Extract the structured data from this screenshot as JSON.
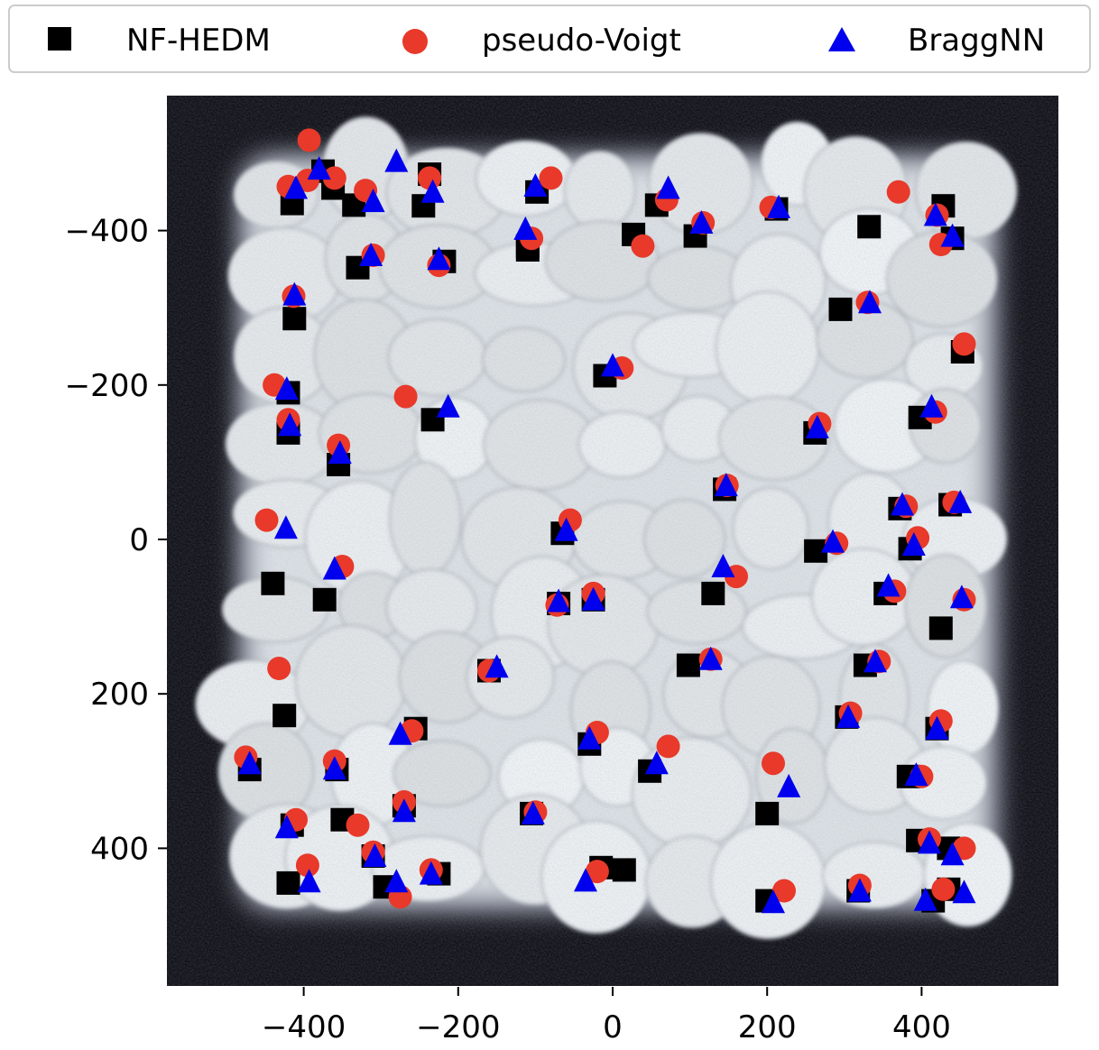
{
  "chart_data": {
    "type": "scatter",
    "background": "grayscale grain-map image (NF-HEDM reconstruction)",
    "x_ticks": [
      -400,
      -200,
      0,
      200,
      400
    ],
    "y_ticks": [
      -400,
      -200,
      0,
      200,
      400
    ],
    "x_tick_labels": [
      "−400",
      "−200",
      "0",
      "200",
      "400"
    ],
    "y_tick_labels": [
      "−400",
      "−200",
      "0",
      "200",
      "400"
    ],
    "xlim": [
      -578,
      578
    ],
    "ylim": [
      578,
      -578
    ],
    "y_inverted": true,
    "grid": false,
    "legend_position": "top, above plot, horizontal",
    "series": [
      {
        "name": "NF-HEDM",
        "marker": "square",
        "color": "#000000",
        "points": [
          [
            -375,
            -477
          ],
          [
            -362,
            -455
          ],
          [
            -335,
            -433
          ],
          [
            -415,
            -435
          ],
          [
            -237,
            -473
          ],
          [
            -245,
            -432
          ],
          [
            -330,
            -352
          ],
          [
            -218,
            -360
          ],
          [
            -110,
            -375
          ],
          [
            -98,
            -450
          ],
          [
            -110,
            -380
          ],
          [
            27,
            -395
          ],
          [
            57,
            -433
          ],
          [
            107,
            -393
          ],
          [
            212,
            -428
          ],
          [
            332,
            -405
          ],
          [
            428,
            -432
          ],
          [
            440,
            -390
          ],
          [
            295,
            -298
          ],
          [
            453,
            -243
          ],
          [
            -412,
            -286
          ],
          [
            -420,
            -190
          ],
          [
            -420,
            -138
          ],
          [
            -355,
            -97
          ],
          [
            -233,
            -155
          ],
          [
            -10,
            -212
          ],
          [
            262,
            -138
          ],
          [
            398,
            -158
          ],
          [
            145,
            -65
          ],
          [
            372,
            -40
          ],
          [
            437,
            -45
          ],
          [
            -65,
            -8
          ],
          [
            263,
            15
          ],
          [
            385,
            12
          ],
          [
            -440,
            57
          ],
          [
            -373,
            78
          ],
          [
            -70,
            83
          ],
          [
            -25,
            78
          ],
          [
            130,
            70
          ],
          [
            353,
            70
          ],
          [
            425,
            115
          ],
          [
            98,
            163
          ],
          [
            -160,
            170
          ],
          [
            327,
            163
          ],
          [
            -425,
            228
          ],
          [
            -255,
            245
          ],
          [
            -30,
            265
          ],
          [
            303,
            230
          ],
          [
            420,
            245
          ],
          [
            -470,
            298
          ],
          [
            -357,
            298
          ],
          [
            48,
            300
          ],
          [
            383,
            307
          ],
          [
            -270,
            345
          ],
          [
            -350,
            363
          ],
          [
            -105,
            355
          ],
          [
            200,
            355
          ],
          [
            -415,
            370
          ],
          [
            -310,
            410
          ],
          [
            -295,
            450
          ],
          [
            -420,
            445
          ],
          [
            -225,
            433
          ],
          [
            -15,
            425
          ],
          [
            395,
            390
          ],
          [
            435,
            400
          ],
          [
            200,
            468
          ],
          [
            318,
            455
          ],
          [
            415,
            468
          ],
          [
            435,
            453
          ],
          [
            15,
            428
          ]
        ]
      },
      {
        "name": "pseudo-Voigt",
        "marker": "circle",
        "color": "#e8392a",
        "points": [
          [
            -393,
            -517
          ],
          [
            -395,
            -465
          ],
          [
            -360,
            -468
          ],
          [
            -320,
            -452
          ],
          [
            -237,
            -468
          ],
          [
            -80,
            -468
          ],
          [
            -420,
            -457
          ],
          [
            -225,
            -355
          ],
          [
            -310,
            -368
          ],
          [
            -105,
            -390
          ],
          [
            70,
            -440
          ],
          [
            117,
            -410
          ],
          [
            205,
            -430
          ],
          [
            370,
            -450
          ],
          [
            420,
            -420
          ],
          [
            425,
            -382
          ],
          [
            39,
            -380
          ],
          [
            330,
            -307
          ],
          [
            455,
            -253
          ],
          [
            -413,
            -315
          ],
          [
            -438,
            -200
          ],
          [
            -420,
            -155
          ],
          [
            -268,
            -185
          ],
          [
            -355,
            -122
          ],
          [
            12,
            -222
          ],
          [
            268,
            -150
          ],
          [
            418,
            -165
          ],
          [
            148,
            -70
          ],
          [
            380,
            -43
          ],
          [
            442,
            -48
          ],
          [
            -448,
            -25
          ],
          [
            -55,
            -25
          ],
          [
            290,
            5
          ],
          [
            395,
            -2
          ],
          [
            -350,
            35
          ],
          [
            -72,
            85
          ],
          [
            -25,
            70
          ],
          [
            160,
            48
          ],
          [
            365,
            67
          ],
          [
            455,
            78
          ],
          [
            -160,
            170
          ],
          [
            127,
            155
          ],
          [
            345,
            158
          ],
          [
            -432,
            167
          ],
          [
            -260,
            248
          ],
          [
            -20,
            250
          ],
          [
            72,
            268
          ],
          [
            308,
            225
          ],
          [
            425,
            235
          ],
          [
            -475,
            282
          ],
          [
            -360,
            287
          ],
          [
            208,
            290
          ],
          [
            400,
            307
          ],
          [
            -270,
            340
          ],
          [
            -330,
            370
          ],
          [
            -100,
            353
          ],
          [
            -410,
            363
          ],
          [
            -395,
            422
          ],
          [
            -310,
            405
          ],
          [
            -275,
            463
          ],
          [
            -235,
            428
          ],
          [
            -20,
            430
          ],
          [
            410,
            388
          ],
          [
            455,
            400
          ],
          [
            222,
            455
          ],
          [
            320,
            448
          ],
          [
            428,
            453
          ]
        ]
      },
      {
        "name": "BraggNN",
        "marker": "triangle",
        "color": "#0000ee",
        "points": [
          [
            -280,
            -490
          ],
          [
            -380,
            -480
          ],
          [
            -410,
            -455
          ],
          [
            -310,
            -438
          ],
          [
            -233,
            -450
          ],
          [
            -100,
            -458
          ],
          [
            72,
            -455
          ],
          [
            -113,
            -402
          ],
          [
            -313,
            -368
          ],
          [
            -225,
            -363
          ],
          [
            115,
            -410
          ],
          [
            215,
            -430
          ],
          [
            418,
            -420
          ],
          [
            440,
            -393
          ],
          [
            333,
            -307
          ],
          [
            -412,
            -317
          ],
          [
            -422,
            -195
          ],
          [
            -418,
            -148
          ],
          [
            -353,
            -112
          ],
          [
            -213,
            -172
          ],
          [
            0,
            -225
          ],
          [
            265,
            -145
          ],
          [
            413,
            -172
          ],
          [
            147,
            -70
          ],
          [
            375,
            -45
          ],
          [
            450,
            -48
          ],
          [
            -423,
            -15
          ],
          [
            -60,
            -12
          ],
          [
            285,
            3
          ],
          [
            390,
            7
          ],
          [
            -360,
            38
          ],
          [
            -70,
            80
          ],
          [
            -25,
            78
          ],
          [
            143,
            35
          ],
          [
            357,
            60
          ],
          [
            452,
            75
          ],
          [
            -150,
            165
          ],
          [
            127,
            155
          ],
          [
            340,
            158
          ],
          [
            -275,
            252
          ],
          [
            -30,
            258
          ],
          [
            57,
            290
          ],
          [
            305,
            230
          ],
          [
            420,
            245
          ],
          [
            -470,
            290
          ],
          [
            -360,
            297
          ],
          [
            228,
            320
          ],
          [
            393,
            305
          ],
          [
            -270,
            352
          ],
          [
            -103,
            355
          ],
          [
            -422,
            373
          ],
          [
            -308,
            410
          ],
          [
            -393,
            443
          ],
          [
            -280,
            443
          ],
          [
            -235,
            433
          ],
          [
            -35,
            442
          ],
          [
            410,
            393
          ],
          [
            440,
            408
          ],
          [
            208,
            470
          ],
          [
            320,
            455
          ],
          [
            405,
            467
          ],
          [
            455,
            457
          ]
        ]
      }
    ]
  }
}
